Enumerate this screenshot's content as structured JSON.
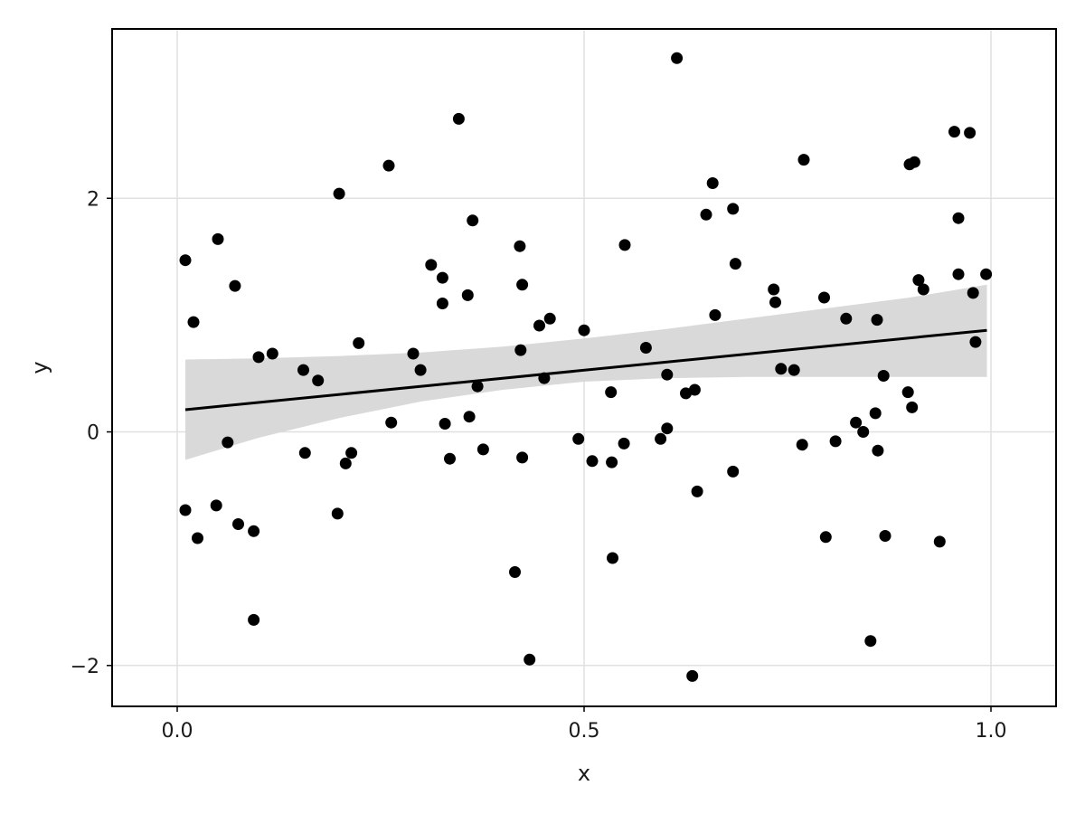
{
  "chart_data": {
    "type": "scatter",
    "title": "",
    "xlabel": "x",
    "ylabel": "y",
    "xlim": [
      -0.08,
      1.08
    ],
    "ylim": [
      -2.35,
      3.45
    ],
    "x_ticks": [
      0.0,
      0.5,
      1.0
    ],
    "x_tick_labels": [
      "0.0",
      "0.5",
      "1.0"
    ],
    "y_ticks": [
      -2,
      0,
      2
    ],
    "y_tick_labels": [
      "−2",
      "0",
      "2"
    ],
    "grid": true,
    "legend": "none",
    "colors": {
      "points": "#000000",
      "fit_line": "#000000",
      "confidence_band": "#d9d9d9",
      "grid": "#e0e0e0"
    },
    "series": [
      {
        "type": "scatter",
        "points": [
          [
            0.01,
            1.47
          ],
          [
            0.01,
            -0.67
          ],
          [
            0.02,
            0.94
          ],
          [
            0.025,
            -0.91
          ],
          [
            0.05,
            1.65
          ],
          [
            0.048,
            -0.63
          ],
          [
            0.062,
            -0.09
          ],
          [
            0.071,
            1.25
          ],
          [
            0.075,
            -0.79
          ],
          [
            0.094,
            -0.85
          ],
          [
            0.094,
            -1.61
          ],
          [
            0.1,
            0.64
          ],
          [
            0.117,
            0.67
          ],
          [
            0.155,
            0.53
          ],
          [
            0.157,
            -0.18
          ],
          [
            0.173,
            0.44
          ],
          [
            0.197,
            -0.7
          ],
          [
            0.199,
            2.04
          ],
          [
            0.207,
            -0.27
          ],
          [
            0.214,
            -0.18
          ],
          [
            0.223,
            0.76
          ],
          [
            0.26,
            2.28
          ],
          [
            0.263,
            0.08
          ],
          [
            0.29,
            0.67
          ],
          [
            0.299,
            0.53
          ],
          [
            0.312,
            1.43
          ],
          [
            0.326,
            1.1
          ],
          [
            0.326,
            1.32
          ],
          [
            0.329,
            0.07
          ],
          [
            0.335,
            -0.23
          ],
          [
            0.346,
            2.68
          ],
          [
            0.357,
            1.17
          ],
          [
            0.359,
            0.13
          ],
          [
            0.363,
            1.81
          ],
          [
            0.369,
            0.39
          ],
          [
            0.376,
            -0.15
          ],
          [
            0.415,
            -1.2
          ],
          [
            0.421,
            1.59
          ],
          [
            0.422,
            0.7
          ],
          [
            0.424,
            1.26
          ],
          [
            0.424,
            -0.22
          ],
          [
            0.433,
            -1.95
          ],
          [
            0.445,
            0.91
          ],
          [
            0.451,
            0.46
          ],
          [
            0.458,
            0.97
          ],
          [
            0.493,
            -0.06
          ],
          [
            0.5,
            0.87
          ],
          [
            0.51,
            -0.25
          ],
          [
            0.533,
            0.34
          ],
          [
            0.534,
            -0.26
          ],
          [
            0.535,
            -1.08
          ],
          [
            0.549,
            -0.1
          ],
          [
            0.55,
            1.6
          ],
          [
            0.576,
            0.72
          ],
          [
            0.594,
            -0.06
          ],
          [
            0.602,
            0.49
          ],
          [
            0.602,
            0.03
          ],
          [
            0.614,
            3.2
          ],
          [
            0.625,
            0.33
          ],
          [
            0.633,
            -2.09
          ],
          [
            0.636,
            0.36
          ],
          [
            0.639,
            -0.51
          ],
          [
            0.65,
            1.86
          ],
          [
            0.658,
            2.13
          ],
          [
            0.661,
            1.0
          ],
          [
            0.683,
            1.91
          ],
          [
            0.683,
            -0.34
          ],
          [
            0.686,
            1.44
          ],
          [
            0.733,
            1.22
          ],
          [
            0.735,
            1.11
          ],
          [
            0.742,
            0.54
          ],
          [
            0.758,
            0.53
          ],
          [
            0.768,
            -0.11
          ],
          [
            0.77,
            2.33
          ],
          [
            0.795,
            1.15
          ],
          [
            0.797,
            -0.9
          ],
          [
            0.809,
            -0.08
          ],
          [
            0.822,
            0.97
          ],
          [
            0.834,
            0.08
          ],
          [
            0.843,
            0.0
          ],
          [
            0.852,
            -1.79
          ],
          [
            0.858,
            0.16
          ],
          [
            0.86,
            0.96
          ],
          [
            0.861,
            -0.16
          ],
          [
            0.868,
            0.48
          ],
          [
            0.87,
            -0.89
          ],
          [
            0.898,
            0.34
          ],
          [
            0.9,
            2.29
          ],
          [
            0.903,
            0.21
          ],
          [
            0.906,
            2.31
          ],
          [
            0.911,
            1.3
          ],
          [
            0.917,
            1.22
          ],
          [
            0.937,
            -0.94
          ],
          [
            0.955,
            2.57
          ],
          [
            0.96,
            1.83
          ],
          [
            0.96,
            1.35
          ],
          [
            0.974,
            2.56
          ],
          [
            0.978,
            1.19
          ],
          [
            0.981,
            0.77
          ],
          [
            0.994,
            1.35
          ]
        ]
      },
      {
        "type": "line",
        "name": "",
        "x": [
          0.01,
          0.995
        ],
        "y": [
          0.19,
          0.87
        ]
      },
      {
        "type": "band",
        "x": [
          0.01,
          0.1,
          0.2,
          0.3,
          0.4,
          0.5,
          0.6,
          0.7,
          0.8,
          0.9,
          0.995
        ],
        "lower": [
          -0.24,
          -0.05,
          0.12,
          0.26,
          0.36,
          0.43,
          0.46,
          0.47,
          0.47,
          0.47,
          0.47
        ],
        "upper": [
          0.62,
          0.63,
          0.65,
          0.68,
          0.73,
          0.8,
          0.88,
          0.97,
          1.06,
          1.15,
          1.26
        ]
      }
    ]
  }
}
